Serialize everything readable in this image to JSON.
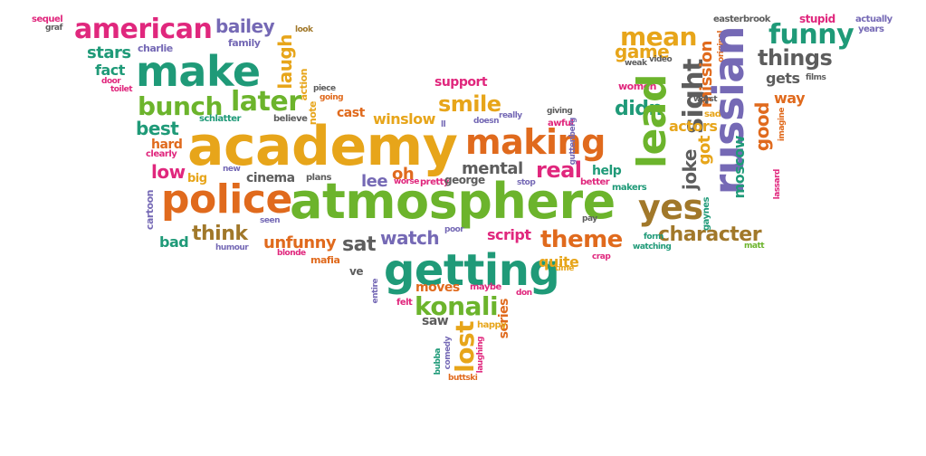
{
  "words": [
    {
      "text": "sequel",
      "color": "pink"
    },
    {
      "text": "graf",
      "color": "gray"
    },
    {
      "text": "american",
      "color": "pink"
    },
    {
      "text": "bailey",
      "color": "purple"
    },
    {
      "text": "look",
      "color": "brown"
    },
    {
      "text": "family",
      "color": "purple"
    },
    {
      "text": "stars",
      "color": "teal"
    },
    {
      "text": "charlie",
      "color": "purple"
    },
    {
      "text": "make",
      "color": "teal"
    },
    {
      "text": "laugh",
      "color": "gold"
    },
    {
      "text": "action",
      "color": "gold"
    },
    {
      "text": "fact",
      "color": "teal"
    },
    {
      "text": "door",
      "color": "pink"
    },
    {
      "text": "toilet",
      "color": "pink"
    },
    {
      "text": "bunch",
      "color": "green"
    },
    {
      "text": "later",
      "color": "green"
    },
    {
      "text": "going",
      "color": "orange"
    },
    {
      "text": "note",
      "color": "gold"
    },
    {
      "text": "best",
      "color": "teal"
    },
    {
      "text": "schlatter",
      "color": "teal"
    },
    {
      "text": "believe",
      "color": "gray"
    },
    {
      "text": "piece",
      "color": "gray"
    },
    {
      "text": "cast",
      "color": "orange"
    },
    {
      "text": "academy",
      "color": "gold"
    },
    {
      "text": "hard",
      "color": "orange"
    },
    {
      "text": "clearly",
      "color": "pink"
    },
    {
      "text": "low",
      "color": "pink"
    },
    {
      "text": "big",
      "color": "gold"
    },
    {
      "text": "new",
      "color": "purple"
    },
    {
      "text": "cinema",
      "color": "gray"
    },
    {
      "text": "plans",
      "color": "gray"
    },
    {
      "text": "cartoon",
      "color": "purple"
    },
    {
      "text": "police",
      "color": "orange"
    },
    {
      "text": "atmosphere",
      "color": "green"
    },
    {
      "text": "bad",
      "color": "teal"
    },
    {
      "text": "think",
      "color": "brown"
    },
    {
      "text": "seen",
      "color": "purple"
    },
    {
      "text": "humour",
      "color": "purple"
    },
    {
      "text": "unfunny",
      "color": "orange"
    },
    {
      "text": "blonde",
      "color": "pink"
    },
    {
      "text": "mafia",
      "color": "orange"
    },
    {
      "text": "sat",
      "color": "gray"
    },
    {
      "text": "watch",
      "color": "purple"
    },
    {
      "text": "ve",
      "color": "gray"
    },
    {
      "text": "support",
      "color": "pink"
    },
    {
      "text": "smile",
      "color": "gold"
    },
    {
      "text": "winslow",
      "color": "gold"
    },
    {
      "text": "ll",
      "color": "purple"
    },
    {
      "text": "doesn",
      "color": "purple"
    },
    {
      "text": "really",
      "color": "purple"
    },
    {
      "text": "making",
      "color": "orange"
    },
    {
      "text": "lee",
      "color": "purple"
    },
    {
      "text": "oh",
      "color": "orange"
    },
    {
      "text": "worse",
      "color": "pink"
    },
    {
      "text": "pretty",
      "color": "pink"
    },
    {
      "text": "mental",
      "color": "gray"
    },
    {
      "text": "george",
      "color": "gray"
    },
    {
      "text": "stop",
      "color": "purple"
    },
    {
      "text": "getting",
      "color": "teal"
    },
    {
      "text": "poor",
      "color": "purple"
    },
    {
      "text": "script",
      "color": "pink"
    },
    {
      "text": "quite",
      "color": "gold"
    },
    {
      "text": "time",
      "color": "gold"
    },
    {
      "text": "entire",
      "color": "purple"
    },
    {
      "text": "moves",
      "color": "orange"
    },
    {
      "text": "maybe",
      "color": "pink"
    },
    {
      "text": "konali",
      "color": "green"
    },
    {
      "text": "don",
      "color": "pink"
    },
    {
      "text": "felt",
      "color": "pink"
    },
    {
      "text": "saw",
      "color": "gray"
    },
    {
      "text": "series",
      "color": "orange"
    },
    {
      "text": "happy",
      "color": "gold"
    },
    {
      "text": "lost",
      "color": "gold"
    },
    {
      "text": "bubba",
      "color": "teal"
    },
    {
      "text": "comedy",
      "color": "purple"
    },
    {
      "text": "laughing",
      "color": "pink"
    },
    {
      "text": "buttski",
      "color": "orange"
    },
    {
      "text": "giving",
      "color": "gray"
    },
    {
      "text": "awful",
      "color": "pink"
    },
    {
      "text": "guttenberg",
      "color": "purple"
    },
    {
      "text": "real",
      "color": "pink"
    },
    {
      "text": "help",
      "color": "teal"
    },
    {
      "text": "better",
      "color": "pink"
    },
    {
      "text": "makers",
      "color": "teal"
    },
    {
      "text": "theme",
      "color": "orange"
    },
    {
      "text": "pay",
      "color": "gray"
    },
    {
      "text": "crap",
      "color": "pink"
    },
    {
      "text": "mean",
      "color": "gold"
    },
    {
      "text": "game",
      "color": "gold"
    },
    {
      "text": "weak",
      "color": "gray"
    },
    {
      "text": "video",
      "color": "gray"
    },
    {
      "text": "women",
      "color": "pink"
    },
    {
      "text": "didn",
      "color": "teal"
    },
    {
      "text": "lead",
      "color": "green"
    },
    {
      "text": "sight",
      "color": "gray"
    },
    {
      "text": "actors",
      "color": "gold"
    },
    {
      "text": "got",
      "color": "gold"
    },
    {
      "text": "joke",
      "color": "gray"
    },
    {
      "text": "yes",
      "color": "brown"
    },
    {
      "text": "character",
      "color": "brown"
    },
    {
      "text": "form",
      "color": "teal"
    },
    {
      "text": "watching",
      "color": "teal"
    },
    {
      "text": "easterbrook",
      "color": "gray"
    },
    {
      "text": "original",
      "color": "orange"
    },
    {
      "text": "mission",
      "color": "orange"
    },
    {
      "text": "worst",
      "color": "gray"
    },
    {
      "text": "sad",
      "color": "gold"
    },
    {
      "text": "russian",
      "color": "purple"
    },
    {
      "text": "gaynes",
      "color": "teal"
    },
    {
      "text": "moscow",
      "color": "teal"
    },
    {
      "text": "good",
      "color": "orange"
    },
    {
      "text": "stupid",
      "color": "pink"
    },
    {
      "text": "funny",
      "color": "teal"
    },
    {
      "text": "things",
      "color": "gray"
    },
    {
      "text": "gets",
      "color": "gray"
    },
    {
      "text": "films",
      "color": "gray"
    },
    {
      "text": "way",
      "color": "orange"
    },
    {
      "text": "imagine",
      "color": "orange"
    },
    {
      "text": "lassard",
      "color": "pink"
    },
    {
      "text": "matt",
      "color": "green"
    },
    {
      "text": "actually",
      "color": "purple"
    },
    {
      "text": "years",
      "color": "purple"
    }
  ]
}
